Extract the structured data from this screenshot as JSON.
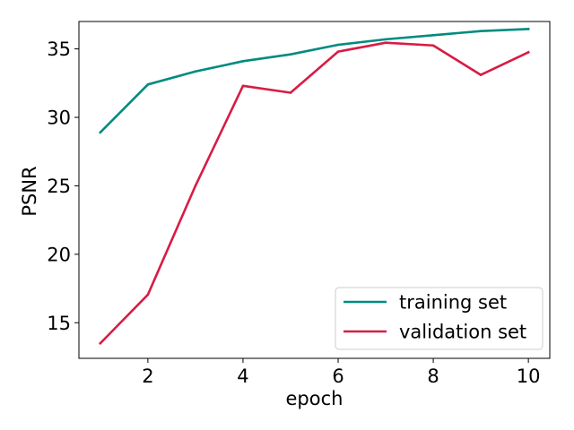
{
  "chart_data": {
    "type": "line",
    "title": "",
    "xlabel": "epoch",
    "ylabel": "PSNR",
    "xlim": [
      0.55,
      10.45
    ],
    "ylim": [
      12.4,
      37.0
    ],
    "x_ticks": [
      2,
      4,
      6,
      8,
      10
    ],
    "y_ticks": [
      15,
      20,
      25,
      30,
      35
    ],
    "grid": false,
    "legend_position": "bottom-right",
    "x": [
      1,
      2,
      3,
      4,
      5,
      6,
      7,
      8,
      9,
      10
    ],
    "series": [
      {
        "name": "training set",
        "color": "#008b80",
        "values": [
          28.9,
          32.4,
          33.35,
          34.1,
          34.6,
          35.3,
          35.7,
          36.0,
          36.3,
          36.45
        ]
      },
      {
        "name": "validation set",
        "color": "#d81c44",
        "values": [
          13.5,
          17.05,
          25.0,
          32.3,
          31.8,
          34.8,
          35.45,
          35.25,
          33.1,
          34.75
        ]
      }
    ]
  }
}
